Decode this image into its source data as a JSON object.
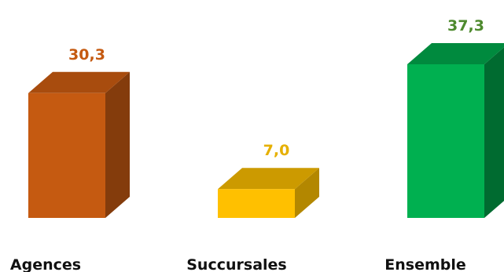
{
  "chart_data": {
    "type": "bar",
    "categories": [
      "Agences",
      "Succursales",
      "Ensemble"
    ],
    "values": [
      30.3,
      7.0,
      37.3
    ],
    "value_labels": [
      "30,3",
      "7,0",
      "37,3"
    ],
    "title": "",
    "xlabel": "",
    "ylabel": "",
    "ylim": [
      0,
      37.3
    ],
    "grid": false,
    "legend": "none",
    "style": "3d",
    "colors": [
      {
        "front": "#c55a11",
        "top": "#a84c0e",
        "side": "#843c0c",
        "label": "#c55a11"
      },
      {
        "front": "#ffc000",
        "top": "#cc9a00",
        "side": "#b38700",
        "label": "#e6b000"
      },
      {
        "front": "#00b050",
        "top": "#008a3e",
        "side": "#006b30",
        "label": "#4e8a2e"
      }
    ]
  }
}
